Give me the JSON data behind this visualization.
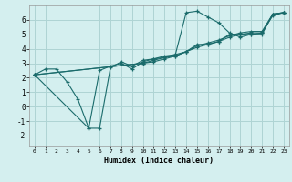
{
  "xlabel": "Humidex (Indice chaleur)",
  "bg_color": "#d4efef",
  "grid_color": "#aed4d4",
  "line_color": "#1a6b6b",
  "xlim": [
    -0.5,
    23.5
  ],
  "ylim": [
    -2.7,
    7.0
  ],
  "yticks": [
    -2,
    -1,
    0,
    1,
    2,
    3,
    4,
    5,
    6
  ],
  "xticks": [
    0,
    1,
    2,
    3,
    4,
    5,
    6,
    7,
    8,
    9,
    10,
    11,
    12,
    13,
    14,
    15,
    16,
    17,
    18,
    19,
    20,
    21,
    22,
    23
  ],
  "series": [
    {
      "x": [
        0,
        1,
        2,
        3,
        4,
        5,
        6,
        7,
        8,
        9,
        10,
        11,
        12,
        13,
        14,
        15,
        16,
        17,
        18,
        19,
        20,
        21,
        22,
        23
      ],
      "y": [
        2.2,
        2.6,
        2.6,
        1.7,
        0.5,
        -1.5,
        -1.5,
        2.7,
        3.1,
        2.8,
        3.2,
        3.3,
        3.5,
        3.6,
        3.8,
        4.3,
        4.3,
        4.5,
        5.0,
        5.0,
        5.0,
        5.0,
        6.4,
        6.5
      ]
    },
    {
      "x": [
        0,
        5,
        6,
        7,
        8,
        9,
        10,
        11,
        12,
        13,
        14,
        15,
        16,
        17,
        18,
        19,
        20,
        21,
        22,
        23
      ],
      "y": [
        2.2,
        -1.5,
        2.5,
        2.8,
        3.0,
        2.6,
        3.1,
        3.3,
        3.4,
        3.6,
        6.5,
        6.6,
        6.2,
        5.8,
        5.1,
        4.8,
        5.0,
        5.1,
        6.4,
        6.5
      ]
    },
    {
      "x": [
        0,
        10,
        11,
        12,
        13,
        14,
        15,
        16,
        17,
        18,
        19,
        20,
        21,
        22,
        23
      ],
      "y": [
        2.2,
        3.0,
        3.2,
        3.4,
        3.5,
        3.8,
        4.2,
        4.4,
        4.6,
        4.9,
        5.1,
        5.2,
        5.2,
        6.4,
        6.5
      ]
    },
    {
      "x": [
        0,
        10,
        11,
        12,
        13,
        14,
        15,
        16,
        17,
        18,
        19,
        20,
        21,
        22,
        23
      ],
      "y": [
        2.2,
        3.0,
        3.1,
        3.3,
        3.5,
        3.8,
        4.1,
        4.3,
        4.5,
        4.8,
        5.0,
        5.1,
        5.1,
        6.3,
        6.5
      ]
    }
  ]
}
